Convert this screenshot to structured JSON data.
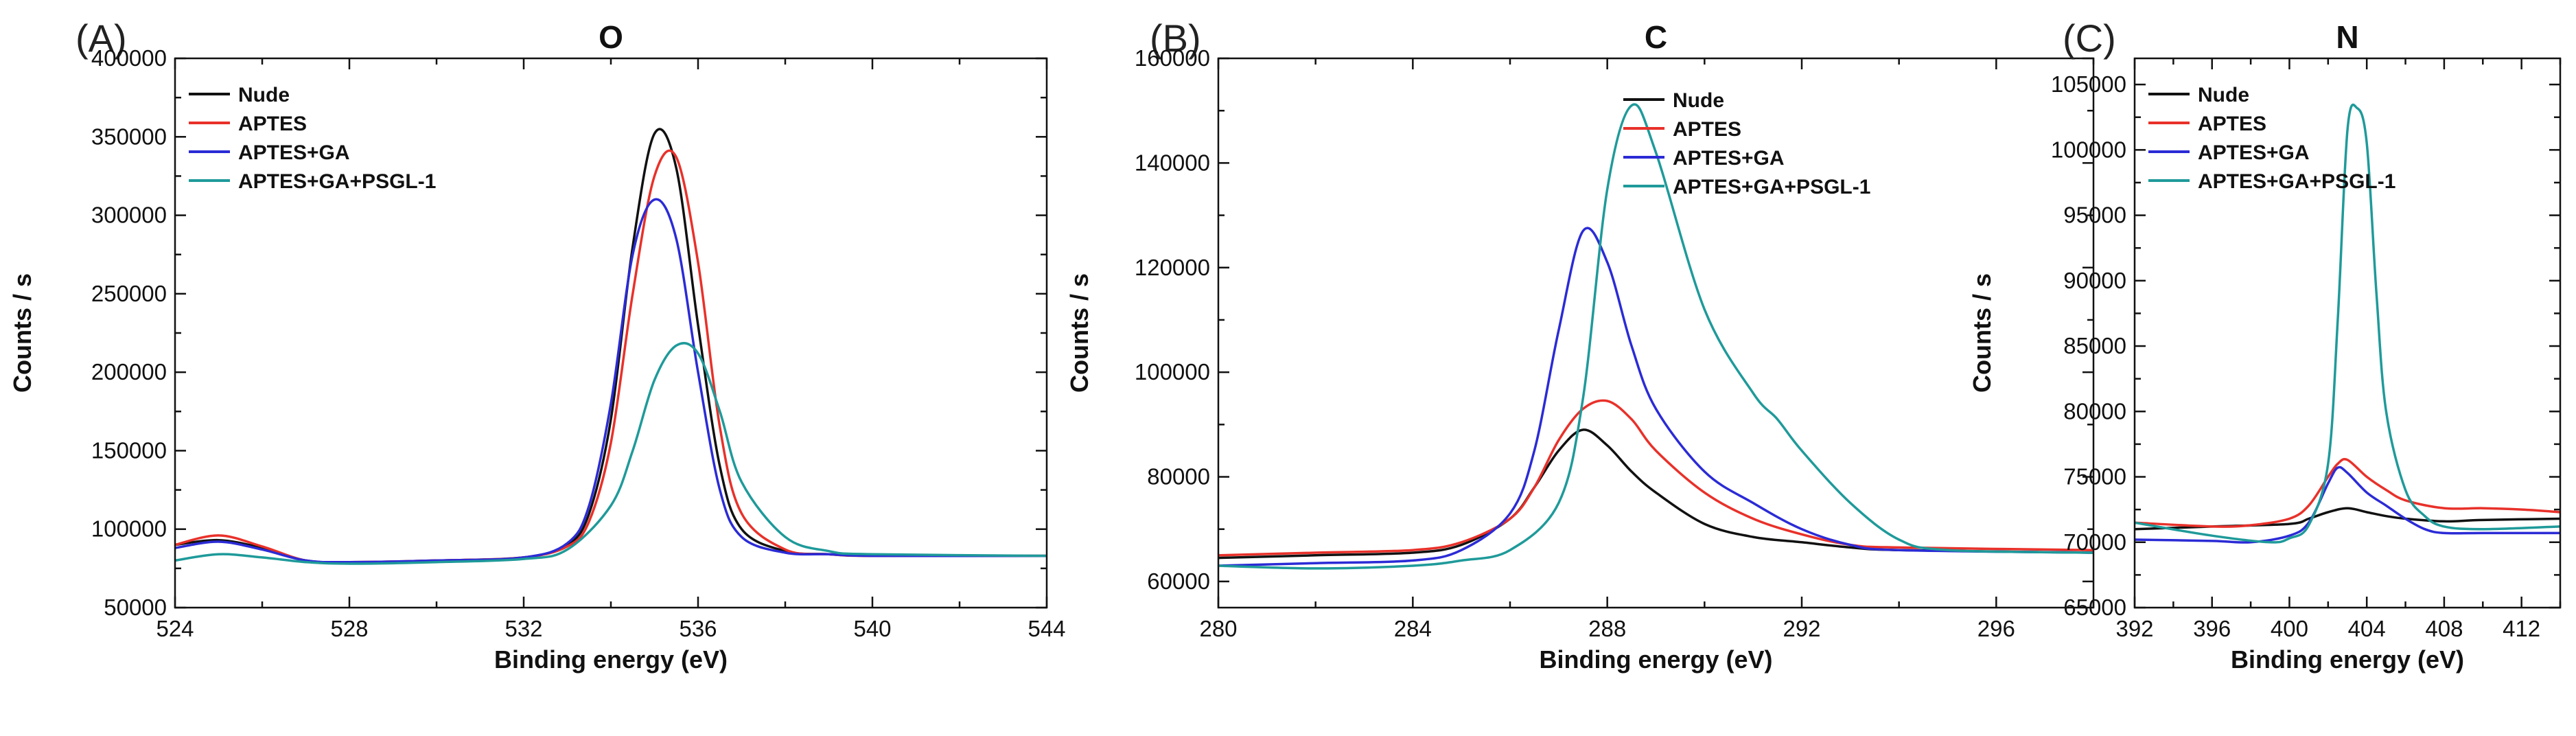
{
  "chart_data": [
    {
      "type": "line",
      "panel": "(A)",
      "title": "O",
      "xlabel": "Binding energy (eV)",
      "ylabel": "Counts / s",
      "xlim": [
        524,
        544
      ],
      "ylim": [
        50000,
        400000
      ],
      "xticks": [
        524,
        528,
        532,
        536,
        540,
        544
      ],
      "yticks": [
        50000,
        100000,
        150000,
        200000,
        250000,
        300000,
        350000,
        400000
      ],
      "legend": "top-left",
      "series": [
        {
          "name": "Nude",
          "color": "#111111",
          "x": [
            524,
            525,
            526,
            527,
            528,
            530,
            532,
            533,
            533.5,
            534,
            534.5,
            535,
            535.5,
            536,
            536.5,
            537,
            538,
            539,
            540,
            544
          ],
          "y": [
            90000,
            93000,
            88000,
            80000,
            79000,
            80000,
            82000,
            90000,
            110000,
            170000,
            280000,
            352000,
            330000,
            230000,
            140000,
            100000,
            86000,
            84000,
            83000,
            83000
          ]
        },
        {
          "name": "APTES",
          "color": "#e8312a",
          "x": [
            524,
            525,
            526,
            527,
            528,
            530,
            532,
            533,
            533.5,
            534,
            534.5,
            535,
            535.5,
            536,
            536.5,
            537,
            538,
            539,
            540,
            544
          ],
          "y": [
            90000,
            96000,
            89000,
            80000,
            79000,
            80000,
            82000,
            89000,
            105000,
            155000,
            250000,
            325000,
            337000,
            270000,
            165000,
            110000,
            87000,
            84000,
            83000,
            83000
          ]
        },
        {
          "name": "APTES+GA",
          "color": "#2b2bd6",
          "x": [
            524,
            525,
            526,
            527,
            528,
            530,
            532,
            533,
            533.5,
            534,
            534.5,
            535,
            535.5,
            536,
            536.5,
            537,
            538,
            539,
            540,
            544
          ],
          "y": [
            88000,
            92000,
            87000,
            80000,
            79000,
            80000,
            82000,
            91000,
            115000,
            180000,
            275000,
            310000,
            285000,
            200000,
            125000,
            95000,
            85000,
            84000,
            83000,
            83000
          ]
        },
        {
          "name": "APTES+GA+PSGL-1",
          "color": "#1f9a9a",
          "x": [
            524,
            525,
            526,
            527,
            528,
            530,
            532,
            533,
            534,
            534.5,
            535,
            535.5,
            536,
            536.5,
            537,
            538,
            539,
            540,
            544
          ],
          "y": [
            80000,
            84000,
            82000,
            79000,
            78000,
            79000,
            81000,
            87000,
            115000,
            150000,
            195000,
            217000,
            212000,
            175000,
            130000,
            95000,
            86000,
            84000,
            83000
          ]
        }
      ]
    },
    {
      "type": "line",
      "panel": "(B)",
      "title": "C",
      "xlabel": "Binding energy (eV)",
      "ylabel": "Counts / s",
      "xlim": [
        280,
        298
      ],
      "ylim": [
        55000,
        160000
      ],
      "xticks": [
        280,
        284,
        288,
        292,
        296
      ],
      "yticks": [
        60000,
        80000,
        100000,
        120000,
        140000,
        160000
      ],
      "legend": "top-right",
      "series": [
        {
          "name": "Nude",
          "color": "#111111",
          "x": [
            280,
            282,
            284,
            285,
            286,
            286.5,
            287,
            287.5,
            288,
            288.5,
            289,
            290,
            291,
            292,
            293,
            294,
            298
          ],
          "y": [
            64500,
            65000,
            65500,
            67000,
            72000,
            78000,
            85000,
            89000,
            86000,
            81000,
            77000,
            71000,
            68500,
            67500,
            66500,
            66000,
            65500
          ]
        },
        {
          "name": "APTES",
          "color": "#e8312a",
          "x": [
            280,
            282,
            284,
            285,
            286,
            286.5,
            287,
            287.5,
            288,
            288.5,
            289,
            290,
            291,
            292,
            293,
            294,
            298
          ],
          "y": [
            65000,
            65500,
            66000,
            67500,
            72000,
            78000,
            87000,
            93000,
            94500,
            91000,
            85000,
            77000,
            72000,
            69000,
            67000,
            66500,
            66000
          ]
        },
        {
          "name": "APTES+GA",
          "color": "#2b2bd6",
          "x": [
            280,
            282,
            284,
            285,
            286,
            286.5,
            287,
            287.5,
            288,
            288.5,
            289,
            290,
            291,
            292,
            293,
            294,
            298
          ],
          "y": [
            63000,
            63500,
            64000,
            66000,
            73000,
            85000,
            108000,
            127000,
            121000,
            105000,
            93000,
            81000,
            75000,
            70000,
            67000,
            66000,
            65500
          ]
        },
        {
          "name": "APTES+GA+PSGL-1",
          "color": "#1f9a9a",
          "x": [
            280,
            282,
            284,
            285,
            286,
            287,
            287.5,
            288,
            288.5,
            289,
            290,
            291,
            291.5,
            292,
            293,
            294,
            295,
            298
          ],
          "y": [
            63000,
            62500,
            63000,
            64000,
            66000,
            75000,
            95000,
            135000,
            151000,
            142000,
            112000,
            96000,
            91000,
            85000,
            75000,
            68000,
            66000,
            65500
          ]
        }
      ]
    },
    {
      "type": "line",
      "panel": "(C)",
      "title": "N",
      "xlabel": "Binding energy (eV)",
      "ylabel": "Counts / s",
      "xlim": [
        392,
        414
      ],
      "ylim": [
        65000,
        107000
      ],
      "xticks": [
        392,
        396,
        400,
        404,
        408,
        412
      ],
      "yticks": [
        65000,
        70000,
        75000,
        80000,
        85000,
        90000,
        95000,
        100000,
        105000
      ],
      "legend": "top-left",
      "series": [
        {
          "name": "Nude",
          "color": "#111111",
          "x": [
            392,
            396,
            400,
            401,
            402,
            403,
            404,
            405,
            406,
            408,
            410,
            414
          ],
          "y": [
            71000,
            71200,
            71400,
            71800,
            72300,
            72600,
            72300,
            72000,
            71800,
            71600,
            71700,
            71800
          ]
        },
        {
          "name": "APTES",
          "color": "#e8312a",
          "x": [
            392,
            396,
            398,
            400,
            401,
            402,
            402.5,
            403,
            404,
            405,
            406,
            408,
            410,
            412,
            414
          ],
          "y": [
            71500,
            71200,
            71300,
            71800,
            72800,
            75000,
            76000,
            76300,
            75000,
            74000,
            73200,
            72600,
            72600,
            72500,
            72300
          ]
        },
        {
          "name": "APTES+GA",
          "color": "#2b2bd6",
          "x": [
            392,
            396,
            398,
            400,
            401,
            402,
            402.5,
            403,
            404,
            405,
            406,
            407,
            408,
            410,
            414
          ],
          "y": [
            70200,
            70100,
            70000,
            70500,
            71500,
            74500,
            75700,
            75300,
            73800,
            72800,
            71800,
            71000,
            70700,
            70700,
            70700
          ]
        },
        {
          "name": "APTES+GA+PSGL-1",
          "color": "#1f9a9a",
          "x": [
            392,
            396,
            399,
            400,
            401,
            402,
            402.5,
            403,
            403.5,
            404,
            404.5,
            405,
            406,
            407,
            408,
            410,
            414
          ],
          "y": [
            71500,
            70500,
            70000,
            70300,
            71300,
            76000,
            87000,
            101500,
            103200,
            100500,
            89000,
            80000,
            74000,
            72000,
            71200,
            71000,
            71200
          ]
        }
      ]
    }
  ]
}
